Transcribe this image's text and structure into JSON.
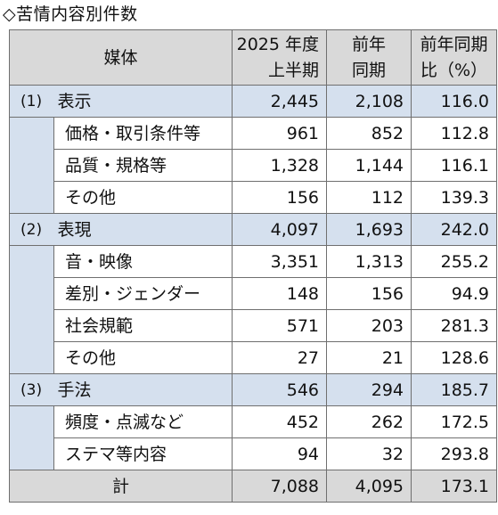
{
  "title": "◇苦情内容別件数",
  "header": {
    "col_media": "媒体",
    "col_h1_line1": "2025 年度",
    "col_h1_line2": "上半期",
    "col_prev_line1": "前年",
    "col_prev_line2": "同期",
    "col_ratio_line1": "前年同期",
    "col_ratio_line2": "比（%）"
  },
  "groups": [
    {
      "num": "(1)",
      "label": "表示",
      "current": "2,445",
      "prev": "2,108",
      "ratio": "116.0",
      "items": [
        {
          "label": "価格・取引条件等",
          "current": "961",
          "prev": "852",
          "ratio": "112.8"
        },
        {
          "label": "品質・規格等",
          "current": "1,328",
          "prev": "1,144",
          "ratio": "116.1"
        },
        {
          "label": "その他",
          "current": "156",
          "prev": "112",
          "ratio": "139.3"
        }
      ]
    },
    {
      "num": "(2)",
      "label": "表現",
      "current": "4,097",
      "prev": "1,693",
      "ratio": "242.0",
      "items": [
        {
          "label": "音・映像",
          "current": "3,351",
          "prev": "1,313",
          "ratio": "255.2"
        },
        {
          "label": "差別・ジェンダー",
          "current": "148",
          "prev": "156",
          "ratio": "94.9"
        },
        {
          "label": "社会規範",
          "current": "571",
          "prev": "203",
          "ratio": "281.3"
        },
        {
          "label": "その他",
          "current": "27",
          "prev": "21",
          "ratio": "128.6"
        }
      ]
    },
    {
      "num": "(3)",
      "label": "手法",
      "current": "546",
      "prev": "294",
      "ratio": "185.7",
      "items": [
        {
          "label": "頻度・点滅など",
          "current": "452",
          "prev": "262",
          "ratio": "172.5"
        },
        {
          "label": "ステマ等内容",
          "current": "94",
          "prev": "32",
          "ratio": "293.8"
        }
      ]
    }
  ],
  "total": {
    "label": "計",
    "current": "7,088",
    "prev": "4,095",
    "ratio": "173.1"
  },
  "colors": {
    "group_bg": "#d5e0ee",
    "header_bg": "#d9d9d9",
    "border": "#6f6f6f"
  }
}
